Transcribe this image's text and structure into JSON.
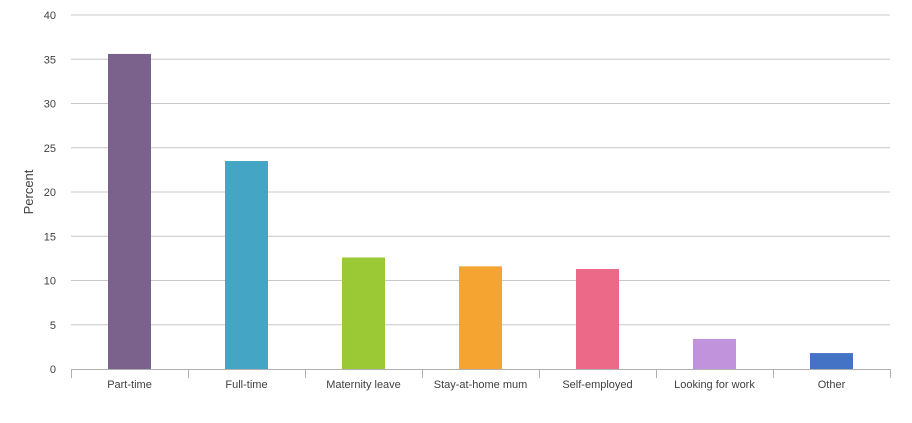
{
  "chart_data": {
    "type": "bar",
    "ylabel": "Percent",
    "xlabel": "",
    "ylim": [
      0,
      40
    ],
    "yticks": [
      0,
      5,
      10,
      15,
      20,
      25,
      30,
      35,
      40
    ],
    "grid": true,
    "categories": [
      "Part-time",
      "Full-time",
      "Maternity leave",
      "Stay-at-home mum",
      "Self-employed",
      "Looking for work",
      "Other"
    ],
    "values": [
      35.6,
      23.5,
      12.6,
      11.6,
      11.3,
      3.4,
      1.8
    ],
    "colors": [
      "#7b628c",
      "#44a5c4",
      "#9bc935",
      "#f5a432",
      "#ec6a88",
      "#c193dc",
      "#4472c4"
    ]
  }
}
